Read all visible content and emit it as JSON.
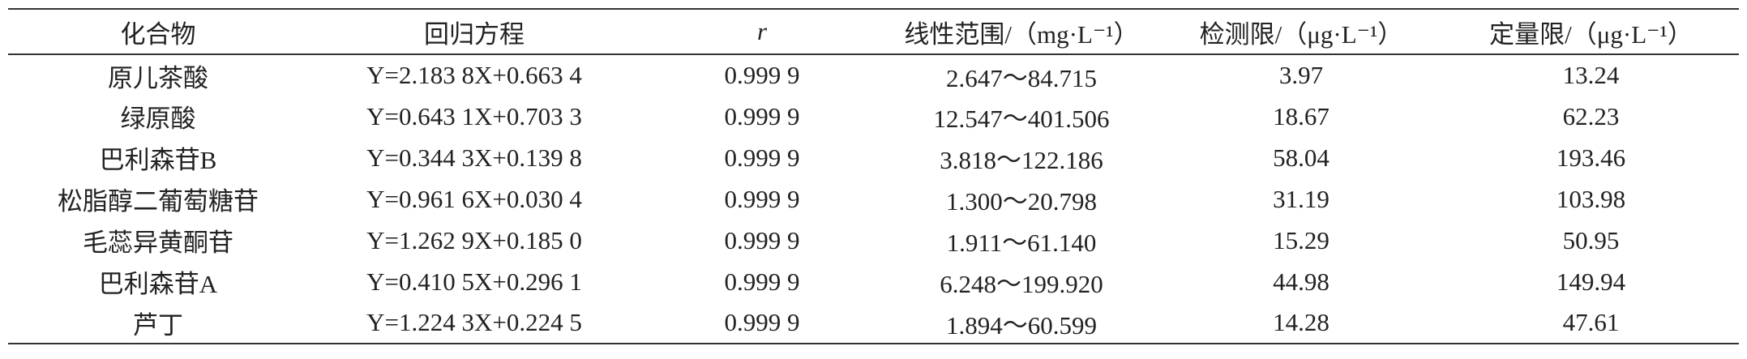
{
  "table": {
    "header": [
      "化合物",
      "回归方程",
      "r",
      "线性范围/（mg·L⁻¹）",
      "检测限/（μg·L⁻¹）",
      "定量限/（μg·L⁻¹）"
    ],
    "rows": [
      [
        "原儿茶酸",
        "Y=2.183 8X+0.663 4",
        "0.999 9",
        "2.647～84.715",
        "3.97",
        "13.24"
      ],
      [
        "绿原酸",
        "Y=0.643 1X+0.703 3",
        "0.999 9",
        "12.547～401.506",
        "18.67",
        "62.23"
      ],
      [
        "巴利森苷B",
        "Y=0.344 3X+0.139 8",
        "0.999 9",
        "3.818～122.186",
        "58.04",
        "193.46"
      ],
      [
        "松脂醇二葡萄糖苷",
        "Y=0.961 6X+0.030 4",
        "0.999 9",
        "1.300～20.798",
        "31.19",
        "103.98"
      ],
      [
        "毛蕊异黄酮苷",
        "Y=1.262 9X+0.185 0",
        "0.999 9",
        "1.911～61.140",
        "15.29",
        "50.95"
      ],
      [
        "巴利森苷A",
        "Y=0.410 5X+0.296 1",
        "0.999 9",
        "6.248～199.920",
        "44.98",
        "149.94"
      ],
      [
        "芦丁",
        "Y=1.224 3X+0.224 5",
        "0.999 9",
        "1.894～60.599",
        "14.28",
        "47.61"
      ]
    ]
  }
}
